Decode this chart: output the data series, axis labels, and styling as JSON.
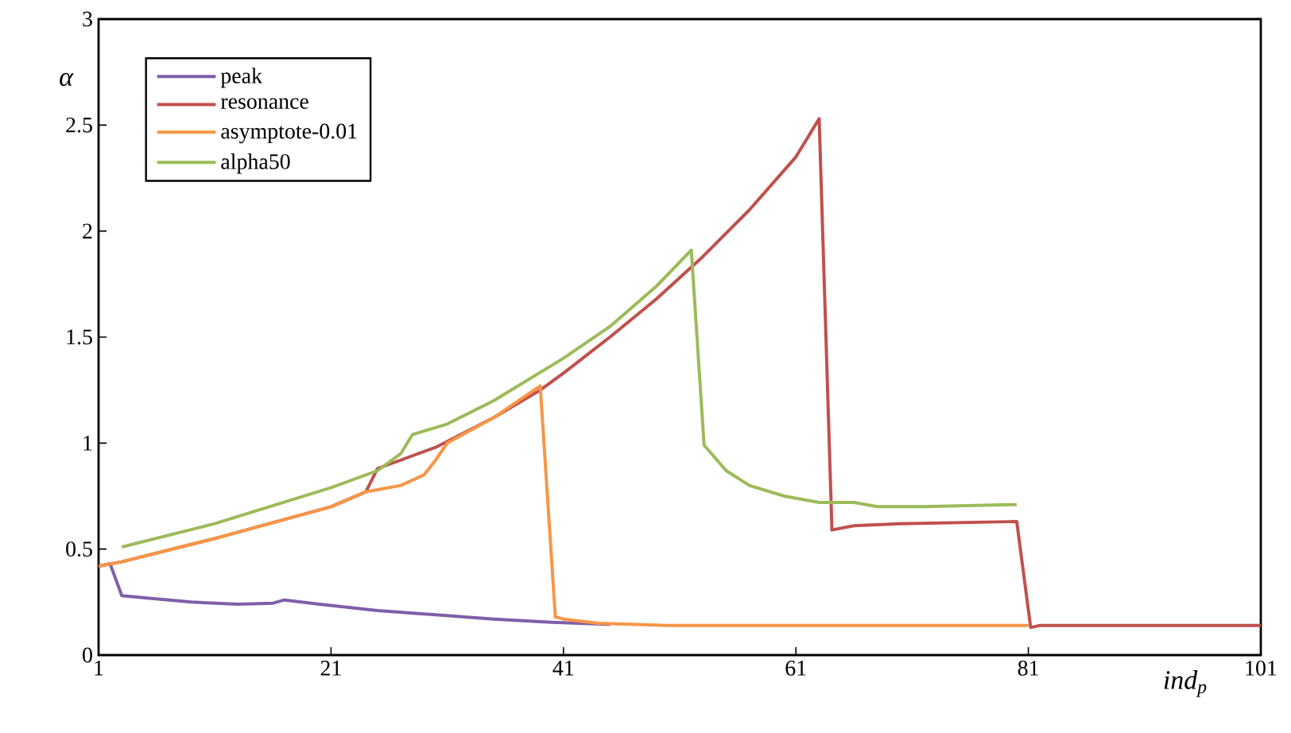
{
  "chart_data": {
    "type": "line",
    "xlabel": "ind$_{p}$",
    "ylabel": "α",
    "xlim": [
      1,
      101
    ],
    "ylim": [
      0,
      3
    ],
    "xticks": [
      1,
      21,
      41,
      61,
      81,
      101
    ],
    "yticks": [
      0,
      0.5,
      1,
      1.5,
      2,
      2.5,
      3
    ],
    "grid": false,
    "legend": "top left",
    "marker": "none",
    "line_style": "solid",
    "series": [
      {
        "name": "peak",
        "color": "#7f5fa8",
        "x": [
          1,
          2,
          3,
          5,
          9,
          13,
          16,
          17,
          20,
          25,
          30,
          35,
          40,
          45
        ],
        "values": [
          0.42,
          0.43,
          0.28,
          0.27,
          0.25,
          0.24,
          0.245,
          0.26,
          0.24,
          0.21,
          0.19,
          0.17,
          0.155,
          0.145
        ]
      },
      {
        "name": "resonance",
        "color": "#c0504d",
        "x": [
          1,
          3,
          11,
          21,
          24,
          25,
          26,
          30,
          35,
          39,
          41,
          45,
          49,
          53,
          57,
          61,
          63,
          64.1,
          66,
          70,
          80,
          81.2,
          82,
          101
        ],
        "values": [
          0.42,
          0.44,
          0.55,
          0.7,
          0.77,
          0.88,
          0.9,
          0.98,
          1.12,
          1.25,
          1.33,
          1.5,
          1.68,
          1.88,
          2.1,
          2.35,
          2.53,
          0.59,
          0.61,
          0.62,
          0.63,
          0.13,
          0.14,
          0.14
        ]
      },
      {
        "name": "asymptote-0.01",
        "color": "#f79646",
        "x": [
          1,
          3,
          11,
          21,
          24,
          25,
          27,
          29,
          30,
          31,
          35,
          39,
          40.3,
          41,
          44,
          50,
          81
        ],
        "values": [
          0.42,
          0.44,
          0.55,
          0.7,
          0.77,
          0.78,
          0.8,
          0.85,
          0.92,
          1.0,
          1.12,
          1.27,
          0.18,
          0.17,
          0.15,
          0.14,
          0.14
        ]
      },
      {
        "name": "alpha50",
        "color": "#9bbb59",
        "x": [
          3,
          11,
          21,
          25,
          27,
          28,
          31,
          35,
          41,
          45,
          49,
          52,
          53.1,
          55,
          57,
          60,
          63,
          66,
          68,
          72,
          80
        ],
        "values": [
          0.51,
          0.62,
          0.79,
          0.87,
          0.95,
          1.04,
          1.09,
          1.2,
          1.4,
          1.55,
          1.74,
          1.91,
          0.99,
          0.87,
          0.8,
          0.75,
          0.72,
          0.72,
          0.7,
          0.7,
          0.71
        ]
      }
    ]
  }
}
